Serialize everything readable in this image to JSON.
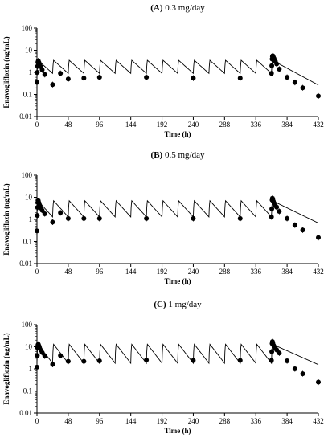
{
  "panel_titles": [
    {
      "letter": "(A)",
      "text": " 0.3 mg/day"
    },
    {
      "letter": "(B)",
      "text": " 0.5 mg/day"
    },
    {
      "letter": "(C)",
      "text": " 1 mg/day"
    }
  ],
  "chart_data": [
    {
      "type": "scatter",
      "title": "(A) 0.3 mg/day",
      "xlabel": "Time (h)",
      "ylabel": "Enavogliflozin (ng/mL)",
      "yscale": "log",
      "xlim": [
        0,
        432
      ],
      "ylim": [
        0.01,
        100
      ],
      "xticks": [
        "0",
        "48",
        "96",
        "144",
        "192",
        "240",
        "288",
        "336",
        "384",
        "432"
      ],
      "yticks": [
        "0.01",
        "0.1",
        "1",
        "10",
        "100"
      ],
      "dose_interval_h": 24,
      "last_dose_h": 360,
      "model_line": {
        "peak": 3.5,
        "trough": 0.9,
        "tmax_h": 1.5,
        "terminal_half_life_h": 19
      },
      "observed": [
        {
          "x": 0,
          "y": 0.35
        },
        {
          "x": 0.5,
          "y": 1.0
        },
        {
          "x": 1,
          "y": 1.9
        },
        {
          "x": 1.5,
          "y": 2.8
        },
        {
          "x": 2,
          "y": 3.3
        },
        {
          "x": 3,
          "y": 2.8
        },
        {
          "x": 4,
          "y": 2.4
        },
        {
          "x": 6,
          "y": 1.8
        },
        {
          "x": 8,
          "y": 1.3
        },
        {
          "x": 12,
          "y": 0.8
        },
        {
          "x": 24,
          "y": 0.28
        },
        {
          "x": 36,
          "y": 0.9
        },
        {
          "x": 48,
          "y": 0.5
        },
        {
          "x": 72,
          "y": 0.55
        },
        {
          "x": 96,
          "y": 0.6
        },
        {
          "x": 168,
          "y": 0.6
        },
        {
          "x": 240,
          "y": 0.55
        },
        {
          "x": 312,
          "y": 0.55
        },
        {
          "x": 360,
          "y": 0.9
        },
        {
          "x": 360.5,
          "y": 2.0
        },
        {
          "x": 361,
          "y": 4.0
        },
        {
          "x": 361.5,
          "y": 5.2
        },
        {
          "x": 362,
          "y": 5.6
        },
        {
          "x": 363,
          "y": 4.8
        },
        {
          "x": 364,
          "y": 4.2
        },
        {
          "x": 366,
          "y": 3.1
        },
        {
          "x": 368,
          "y": 2.4
        },
        {
          "x": 372,
          "y": 1.4
        },
        {
          "x": 384,
          "y": 0.6
        },
        {
          "x": 396,
          "y": 0.35
        },
        {
          "x": 408,
          "y": 0.2
        },
        {
          "x": 432,
          "y": 0.085
        }
      ]
    },
    {
      "type": "scatter",
      "title": "(B) 0.5 mg/day",
      "xlabel": "Time (h)",
      "ylabel": "Enavogliflozin (ng/mL)",
      "yscale": "log",
      "xlim": [
        0,
        432
      ],
      "ylim": [
        0.01,
        100
      ],
      "xticks": [
        "0",
        "48",
        "96",
        "144",
        "192",
        "240",
        "288",
        "336",
        "384",
        "432"
      ],
      "yticks": [
        "0.01",
        "0.1",
        "1",
        "10",
        "100"
      ],
      "dose_interval_h": 24,
      "last_dose_h": 360,
      "model_line": {
        "peak": 7.0,
        "trough": 1.3,
        "tmax_h": 1.5,
        "terminal_half_life_h": 21
      },
      "observed": [
        {
          "x": 0,
          "y": 0.3
        },
        {
          "x": 0.5,
          "y": 1.5
        },
        {
          "x": 1,
          "y": 3.5
        },
        {
          "x": 1.5,
          "y": 6.0
        },
        {
          "x": 2,
          "y": 7.0
        },
        {
          "x": 3,
          "y": 5.6
        },
        {
          "x": 4,
          "y": 4.5
        },
        {
          "x": 6,
          "y": 3.3
        },
        {
          "x": 8,
          "y": 2.6
        },
        {
          "x": 12,
          "y": 1.8
        },
        {
          "x": 24,
          "y": 0.75
        },
        {
          "x": 36,
          "y": 2.0
        },
        {
          "x": 48,
          "y": 1.1
        },
        {
          "x": 72,
          "y": 1.1
        },
        {
          "x": 96,
          "y": 1.1
        },
        {
          "x": 168,
          "y": 1.1
        },
        {
          "x": 240,
          "y": 1.1
        },
        {
          "x": 312,
          "y": 1.1
        },
        {
          "x": 360,
          "y": 1.3
        },
        {
          "x": 360.5,
          "y": 3.0
        },
        {
          "x": 361,
          "y": 7.5
        },
        {
          "x": 361.5,
          "y": 9.0
        },
        {
          "x": 362,
          "y": 8.0
        },
        {
          "x": 363,
          "y": 6.5
        },
        {
          "x": 364,
          "y": 5.5
        },
        {
          "x": 366,
          "y": 4.2
        },
        {
          "x": 368,
          "y": 3.6
        },
        {
          "x": 372,
          "y": 2.3
        },
        {
          "x": 384,
          "y": 1.1
        },
        {
          "x": 396,
          "y": 0.55
        },
        {
          "x": 408,
          "y": 0.33
        },
        {
          "x": 432,
          "y": 0.15
        }
      ]
    },
    {
      "type": "scatter",
      "title": "(C) 1 mg/day",
      "xlabel": "Time (h)",
      "ylabel": "Enavogliflozin (ng/mL)",
      "yscale": "log",
      "xlim": [
        0,
        432
      ],
      "ylim": [
        0.01,
        100
      ],
      "xticks": [
        "0",
        "48",
        "96",
        "144",
        "192",
        "240",
        "288",
        "336",
        "384",
        "432"
      ],
      "yticks": [
        "0.01",
        "0.1",
        "1",
        "10",
        "100"
      ],
      "dose_interval_h": 24,
      "last_dose_h": 360,
      "model_line": {
        "peak": 13.0,
        "trough": 1.8,
        "tmax_h": 1.5,
        "terminal_half_life_h": 23
      },
      "observed": [
        {
          "x": 0,
          "y": 1.2
        },
        {
          "x": 0.5,
          "y": 4.0
        },
        {
          "x": 1,
          "y": 9.0
        },
        {
          "x": 1.5,
          "y": 12.0
        },
        {
          "x": 2,
          "y": 13.0
        },
        {
          "x": 3,
          "y": 11.0
        },
        {
          "x": 4,
          "y": 9.0
        },
        {
          "x": 6,
          "y": 7.0
        },
        {
          "x": 8,
          "y": 5.5
        },
        {
          "x": 12,
          "y": 3.8
        },
        {
          "x": 24,
          "y": 1.6
        },
        {
          "x": 36,
          "y": 4.0
        },
        {
          "x": 48,
          "y": 2.2
        },
        {
          "x": 72,
          "y": 2.2
        },
        {
          "x": 96,
          "y": 2.3
        },
        {
          "x": 168,
          "y": 2.5
        },
        {
          "x": 240,
          "y": 2.4
        },
        {
          "x": 312,
          "y": 2.4
        },
        {
          "x": 360,
          "y": 2.4
        },
        {
          "x": 360.5,
          "y": 6.0
        },
        {
          "x": 361,
          "y": 14.0
        },
        {
          "x": 361.5,
          "y": 17.0
        },
        {
          "x": 362,
          "y": 15.0
        },
        {
          "x": 363,
          "y": 12.0
        },
        {
          "x": 364,
          "y": 10.5
        },
        {
          "x": 366,
          "y": 8.5
        },
        {
          "x": 368,
          "y": 7.2
        },
        {
          "x": 372,
          "y": 5.2
        },
        {
          "x": 384,
          "y": 2.3
        },
        {
          "x": 396,
          "y": 1.0
        },
        {
          "x": 408,
          "y": 0.6
        },
        {
          "x": 432,
          "y": 0.25
        }
      ]
    }
  ]
}
